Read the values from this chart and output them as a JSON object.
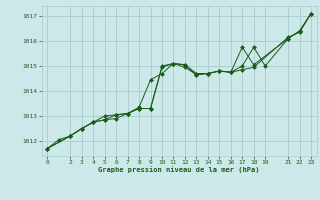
{
  "title": "Graphe pression niveau de la mer (hPa)",
  "background_color": "#cce8e8",
  "grid_color": "#aacccc",
  "line_color": "#1a5c1a",
  "marker_color": "#1a5c1a",
  "xlim": [
    -0.5,
    23.5
  ],
  "ylim": [
    1011.4,
    1017.4
  ],
  "yticks": [
    1012,
    1013,
    1014,
    1015,
    1016,
    1017
  ],
  "xticks": [
    0,
    2,
    3,
    4,
    5,
    6,
    7,
    8,
    9,
    10,
    11,
    12,
    13,
    14,
    15,
    16,
    17,
    18,
    19,
    21,
    22,
    23
  ],
  "series1_x": [
    0,
    1,
    2,
    3,
    4,
    5,
    6,
    7,
    8,
    9,
    10,
    11,
    12,
    13,
    14,
    15,
    16,
    17,
    18,
    21,
    22,
    23
  ],
  "series1_y": [
    1011.7,
    1012.05,
    1012.2,
    1012.5,
    1012.75,
    1012.85,
    1012.9,
    1013.1,
    1013.35,
    1014.45,
    1014.7,
    1015.1,
    1015.05,
    1014.7,
    1014.7,
    1014.8,
    1014.75,
    1014.85,
    1014.95,
    1016.15,
    1016.35,
    1017.1
  ],
  "series2_x": [
    0,
    2,
    3,
    4,
    5,
    6,
    7,
    8,
    9,
    10,
    11,
    12,
    13,
    14,
    15,
    16,
    17,
    18,
    21,
    22,
    23
  ],
  "series2_y": [
    1011.7,
    1012.2,
    1012.5,
    1012.75,
    1012.85,
    1013.05,
    1013.1,
    1013.3,
    1013.3,
    1014.95,
    1015.1,
    1014.95,
    1014.65,
    1014.7,
    1014.8,
    1014.75,
    1015.75,
    1015.05,
    1016.1,
    1016.4,
    1017.1
  ],
  "series3_x": [
    0,
    2,
    3,
    4,
    5,
    6,
    7,
    8,
    9,
    10,
    11,
    12,
    13,
    14,
    15,
    16,
    17,
    18,
    19,
    21,
    22,
    23
  ],
  "series3_y": [
    1011.7,
    1012.2,
    1012.5,
    1012.75,
    1013.0,
    1013.05,
    1013.1,
    1013.3,
    1013.3,
    1015.0,
    1015.1,
    1015.05,
    1014.65,
    1014.7,
    1014.8,
    1014.75,
    1015.0,
    1015.75,
    1015.0,
    1016.1,
    1016.4,
    1017.1
  ]
}
